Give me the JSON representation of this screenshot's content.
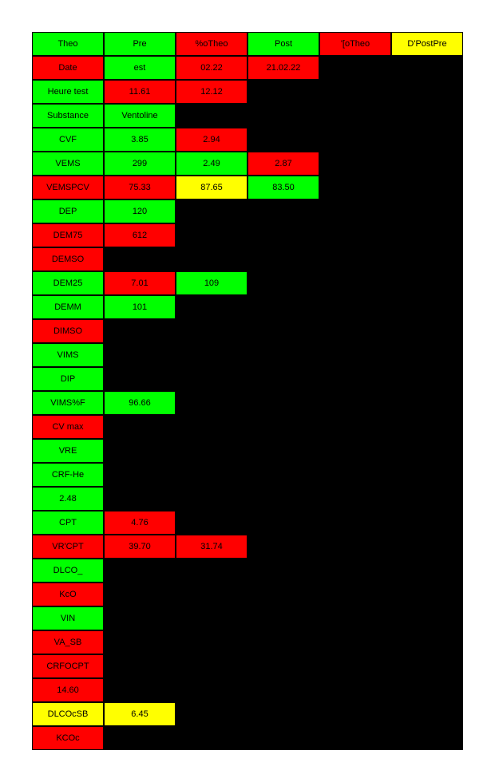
{
  "colors": {
    "green": "#00ff00",
    "red": "#ff0000",
    "yellow": "#ffff00",
    "background": "#000000"
  },
  "table": {
    "rows": [
      [
        {
          "text": "Theo",
          "color": "green"
        },
        {
          "text": "Pre",
          "color": "green"
        },
        {
          "text": "%oTheo",
          "color": "red"
        },
        {
          "text": "Post",
          "color": "green"
        },
        {
          "text": "'[oTheo",
          "color": "red"
        },
        {
          "text": "D'PostPre",
          "color": "yellow"
        }
      ],
      [
        {
          "text": "Date",
          "color": "red"
        },
        {
          "text": "est",
          "color": "green"
        },
        {
          "text": "02.22",
          "color": "red"
        },
        {
          "text": "21.02.22",
          "color": "red"
        }
      ],
      [
        {
          "text": "Heure test",
          "color": "green"
        },
        {
          "text": "11.61",
          "color": "red"
        },
        {
          "text": "12.12",
          "color": "red"
        }
      ],
      [
        {
          "text": "Substance",
          "color": "green"
        },
        {
          "text": "Ventoline",
          "color": "green"
        }
      ],
      [
        {
          "text": "CVF",
          "color": "green"
        },
        {
          "text": "3.85",
          "color": "green"
        },
        {
          "text": "2.94",
          "color": "red"
        }
      ],
      [
        {
          "text": "VEMS",
          "color": "green"
        },
        {
          "text": "299",
          "color": "green"
        },
        {
          "text": "2.49",
          "color": "green"
        },
        {
          "text": "2.87",
          "color": "red"
        }
      ],
      [
        {
          "text": "VEMSPCV",
          "color": "red"
        },
        {
          "text": "75.33",
          "color": "red"
        },
        {
          "text": "87.65",
          "color": "yellow"
        },
        {
          "text": "83.50",
          "color": "green"
        }
      ],
      [
        {
          "text": "DEP",
          "color": "green"
        },
        {
          "text": "120",
          "color": "green"
        }
      ],
      [
        {
          "text": "DEM75",
          "color": "red"
        },
        {
          "text": "612",
          "color": "red"
        }
      ],
      [
        {
          "text": "DEMSO",
          "color": "red"
        }
      ],
      [
        {
          "text": "DEM25",
          "color": "green"
        },
        {
          "text": "7.01",
          "color": "red"
        },
        {
          "text": "109",
          "color": "green"
        }
      ],
      [
        {
          "text": "DEMM",
          "color": "green"
        },
        {
          "text": "101",
          "color": "green"
        }
      ],
      [
        {
          "text": "DIMSO",
          "color": "red"
        }
      ],
      [
        {
          "text": "VIMS",
          "color": "green"
        }
      ],
      [
        {
          "text": "DIP",
          "color": "green"
        }
      ],
      [
        {
          "text": "VIMS%F",
          "color": "green"
        },
        {
          "text": "96.66",
          "color": "green"
        }
      ],
      [
        {
          "text": "CV max",
          "color": "red"
        }
      ],
      [
        {
          "text": "VRE",
          "color": "green"
        }
      ],
      [
        {
          "text": "CRF-He",
          "color": "green"
        }
      ],
      [
        {
          "text": "2.48",
          "color": "green"
        }
      ],
      [
        {
          "text": "CPT",
          "color": "green"
        },
        {
          "text": "4.76",
          "color": "red"
        }
      ],
      [
        {
          "text": "VR'CPT",
          "color": "red"
        },
        {
          "text": "39.70",
          "color": "red"
        },
        {
          "text": "31.74",
          "color": "red"
        }
      ],
      [
        {
          "text": "DLCO_",
          "color": "green"
        }
      ],
      [
        {
          "text": "KcO",
          "color": "red"
        }
      ],
      [
        {
          "text": "VIN",
          "color": "green"
        }
      ],
      [
        {
          "text": "VA_SB",
          "color": "red"
        }
      ],
      [
        {
          "text": "CRFOCPT",
          "color": "red"
        }
      ],
      [
        {
          "text": "14.60",
          "color": "red"
        }
      ],
      [
        {
          "text": "DLCOcSB",
          "color": "yellow"
        },
        {
          "text": "6.45",
          "color": "yellow"
        }
      ],
      [
        {
          "text": "KCOc",
          "color": "red"
        }
      ]
    ]
  }
}
